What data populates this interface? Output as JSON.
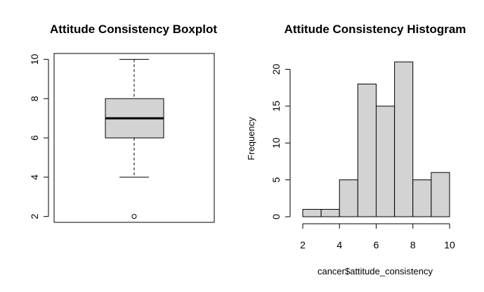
{
  "colors": {
    "fill": "#d3d3d3",
    "stroke": "#000000",
    "background": "#ffffff"
  },
  "chart_data": [
    {
      "type": "box",
      "title": "Attitude Consistency Boxplot",
      "xlabel": "",
      "ylabel": "",
      "ylim": [
        1.7,
        10.3
      ],
      "yticks": [
        2,
        4,
        6,
        8,
        10
      ],
      "ytick_labels": [
        "2",
        "4",
        "6",
        "8",
        "10"
      ],
      "stats": {
        "whisker_low": 4,
        "q1": 6,
        "median": 7,
        "q3": 8,
        "whisker_high": 10
      },
      "outliers": [
        2
      ],
      "grid": false
    },
    {
      "type": "bar",
      "title": "Attitude Consistency Histogram",
      "xlabel": "cancer$attitude_consistency",
      "ylabel": "Frequency",
      "bin_edges": [
        2,
        3,
        4,
        5,
        6,
        7,
        8,
        9,
        10
      ],
      "values": [
        1,
        1,
        5,
        18,
        15,
        21,
        5,
        6
      ],
      "xlim": [
        2,
        10
      ],
      "ylim": [
        0,
        21
      ],
      "xticks": [
        2,
        4,
        6,
        8,
        10
      ],
      "xtick_labels": [
        "2",
        "4",
        "6",
        "8",
        "10"
      ],
      "yticks": [
        0,
        5,
        10,
        15,
        20
      ],
      "ytick_labels": [
        "0",
        "5",
        "10",
        "15",
        "20"
      ],
      "grid": false
    }
  ]
}
